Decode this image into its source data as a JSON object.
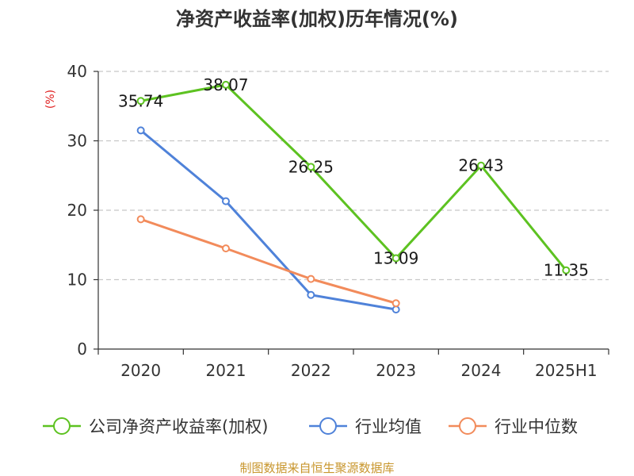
{
  "chart_data": {
    "type": "line",
    "title": "净资产收益率(加权)历年情况(%)",
    "ylabel": "(%)",
    "xlabel": "",
    "categories": [
      "2020",
      "2021",
      "2022",
      "2023",
      "2024",
      "2025H1"
    ],
    "ylim": [
      0,
      40
    ],
    "yticks": [
      "0",
      "10",
      "20",
      "30",
      "40"
    ],
    "grid": true,
    "legend_position": "bottom",
    "series": [
      {
        "name": "公司净资产收益率(加权)",
        "color": "#5dc221",
        "values": [
          35.74,
          38.07,
          26.25,
          13.09,
          26.43,
          11.35
        ],
        "labels": [
          "35.74",
          "38.07",
          "26.25",
          "13.09",
          "26.43",
          "11.35"
        ]
      },
      {
        "name": "行业均值",
        "color": "#4f82d9",
        "values": [
          31.5,
          21.3,
          7.8,
          5.7,
          null,
          null
        ]
      },
      {
        "name": "行业中位数",
        "color": "#f28b5b",
        "values": [
          18.7,
          14.5,
          10.1,
          6.6,
          null,
          null
        ]
      }
    ]
  },
  "source": "制图数据来自恒生聚源数据库"
}
